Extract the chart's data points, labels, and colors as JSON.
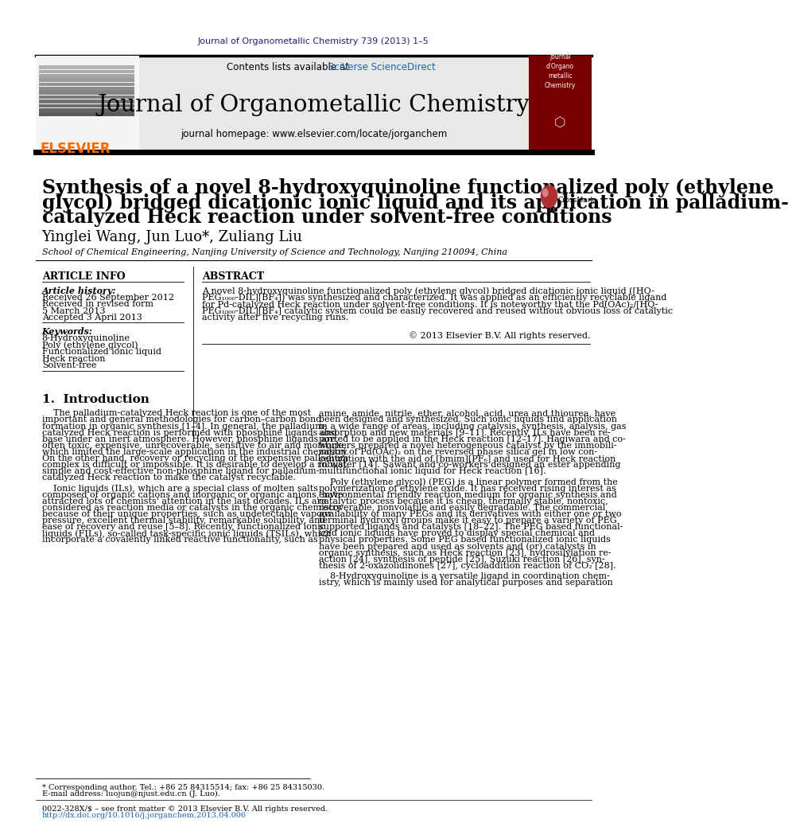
{
  "page_bg": "#ffffff",
  "top_journal_ref": "Journal of Organometallic Chemistry 739 (2013) 1–5",
  "top_journal_ref_color": "#1a237e",
  "header_bg": "#e8e8e8",
  "header_contents": "Contents lists available at ",
  "header_sciverse": "SciVerse ScienceDirect",
  "header_sciverse_color": "#1565c0",
  "journal_name": "Journal of Organometallic Chemistry",
  "journal_homepage": "journal homepage: www.elsevier.com/locate/jorganchem",
  "elsevier_color": "#ff6600",
  "article_title_line1": "Synthesis of a novel 8-hydroxyquinoline functionalized poly (ethylene",
  "article_title_line2": "glycol) bridged dicationic ionic liquid and its application in palladium-",
  "article_title_line3": "catalyzed Heck reaction under solvent-free conditions",
  "authors": "Yinglei Wang, Jun Luo*, Zuliang Liu",
  "affiliation": "School of Chemical Engineering, Nanjing University of Science and Technology, Nanjing 210094, China",
  "article_info_label": "ARTICLE INFO",
  "abstract_label": "ABSTRACT",
  "article_history_label": "Article history:",
  "received_1": "Received 26 September 2012",
  "received_revised": "Received in revised form",
  "revised_date": "5 March 2013",
  "accepted": "Accepted 3 April 2013",
  "keywords_label": "Keywords:",
  "kw1": "8-Hydroxyquinoline",
  "kw2": "Poly (ethylene glycol)",
  "kw3": "Functionalized ionic liquid",
  "kw4": "Heck reaction",
  "kw5": "Solvent-free",
  "abstract_lines": [
    "A novel 8-hydroxyquinoline functionalized poly (ethylene glycol) bridged dicationic ionic liquid ([HQ-",
    "PEG₁₀₀₀-DIL][BF₄]) was synthesized and characterized. It was applied as an efficiently recyclable ligand",
    "for Pd-catalyzed Heck reaction under solvent-free conditions. It is noteworthy that the Pd(OAc)₂/[HQ-",
    "PEG₁₀₀₀-DIL][BF₄] catalytic system could be easily recovered and reused without obvious loss of catalytic",
    "activity after five recycling runs."
  ],
  "copyright": "© 2013 Elsevier B.V. All rights reserved.",
  "intro_heading": "1.  Introduction",
  "intro_col1_p1_lines": [
    "    The palladium-catalyzed Heck reaction is one of the most",
    "important and general methodologies for carbon–carbon bond",
    "formation in organic synthesis [1–4]. In general, the palladium-",
    "catalyzed Heck reaction is performed with phosphine ligands and",
    "base under an inert atmosphere. However, phosphine ligands are",
    "often toxic, expensive, unrecoverable, sensitive to air and moisture,",
    "which limited the large-scale application in the industrial chemistry.",
    "On the other hand, recovery or recycling of the expensive palladium",
    "complex is difficult or impossible. It is desirable to develop a robust,",
    "simple and cost-effective non-phosphine ligand for palladium-",
    "catalyzed Heck reaction to make the catalyst recyclable."
  ],
  "intro_col1_p2_lines": [
    "    Ionic liquids (ILs), which are a special class of molten salts",
    "composed of organic cations and inorganic or organic anions, have",
    "attracted lots of chemists' attention in the last decades. ILs are",
    "considered as reaction media or catalysts in the organic chemistry",
    "because of their unique properties, such as undetectable vapour",
    "pressure, excellent thermal stability, remarkable solubility, and",
    "ease of recovery and reuse [5–8]. Recently, functionalized ionic",
    "liquids (FILs), so-called task-specific ionic liquids (TSILs), which",
    "incorporate a covalently linked reactive functionality, such as"
  ],
  "intro_col2_p1_lines": [
    "amine, amide, nitrile, ether, alcohol, acid, urea and thiourea, have",
    "been designed and synthesized. Such ionic liquids find application",
    "in a wide range of areas, including catalysis, synthesis, analysis, gas",
    "absorption and new materials [9–11]. Recently, ILs have been re-",
    "ported to be applied in the Heck reaction [12–17]. Hagiwara and co-",
    "workers prepared a novel heterogeneous catalyst by the immobili-",
    "zation of Pd(OAc)₂ on the reversed phase silica gel in low con-",
    "centration with the aid of [bmim][PF₆] and used for Heck reaction",
    "in water [14]. Sawant and co-workers designed an ester appending",
    "multifunctional ionic liquid for Heck reaction [16]."
  ],
  "intro_col2_p2_lines": [
    "    Poly (ethylene glycol) (PEG) is a linear polymer formed from the",
    "polymerization of ethylene oxide. It has received rising interest as",
    "environmental friendly reaction medium for organic synthesis and",
    "catalytic process because it is cheap, thermally stable, nontoxic,",
    "recoverable, nonvolatile and easily degradable. The commercial",
    "availability of many PEGs and its derivatives with either one or two",
    "terminal hydroxyl groups make it easy to prepare a variety of PEG",
    "supported ligands and catalysts [18–22]. The PEG based functional-",
    "ized ionic liquids have proved to display special chemical and",
    "physical properties. Some PEG based functionalized ionic liquids",
    "have been prepared and used as solvents and (or) catalysts in",
    "organic synthesis, such as Heck reaction [23], hydrosilylation re-",
    "action [24], synthesis of peptide [25], Suzuki reaction [26], syn-",
    "thesis of 2-oxazolidinones [27], cycloaddition reaction of CO₂ [28]."
  ],
  "intro_col2_p3_lines": [
    "    8-Hydroxyquinoline is a versatile ligand in coordination chem-",
    "istry, which is mainly used for analytical purposes and separation"
  ],
  "footnote_star": "* Corresponding author. Tel.: +86 25 84315514; fax: +86 25 84315030.",
  "footnote_email": "E-mail address: luojun@njust.edu.cn (J. Luo).",
  "footnote_issn": "0022-328X/$ – see front matter © 2013 Elsevier B.V. All rights reserved.",
  "footnote_doi": "http://dx.doi.org/10.1016/j.jorganchem.2013.04.006"
}
